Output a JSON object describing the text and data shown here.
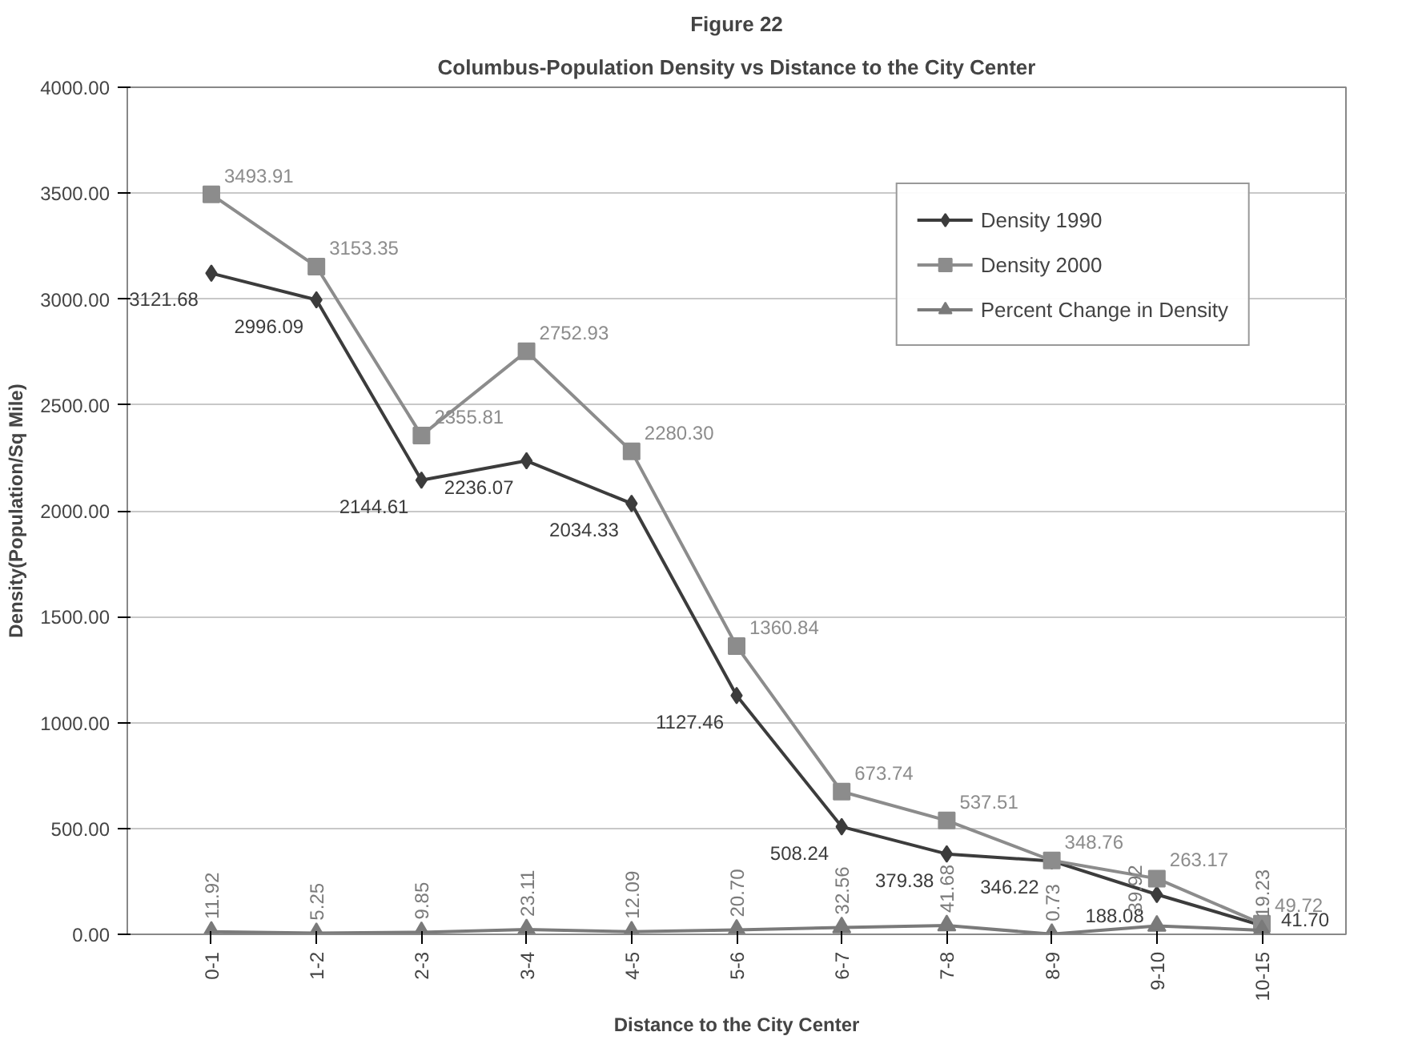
{
  "chart_data": {
    "type": "line",
    "title": "Figure 22",
    "subtitle": "Columbus-Population Density vs Distance to the City Center",
    "xlabel": "Distance to the City Center",
    "ylabel": "Density(Population/Sq Mile)",
    "categories": [
      "0-1",
      "1-2",
      "2-3",
      "3-4",
      "4-5",
      "5-6",
      "6-7",
      "7-8",
      "8-9",
      "9-10",
      "10-15"
    ],
    "series": [
      {
        "name": "Density 1990",
        "color": "#3c3c3c",
        "marker": "diamond",
        "values": [
          3121.68,
          2996.09,
          2144.61,
          2236.07,
          2034.33,
          1127.46,
          508.24,
          379.38,
          346.22,
          188.08,
          41.7
        ],
        "value_labels": [
          "3121.68",
          "2996.09",
          "2144.61",
          "2236.07",
          "2034.33",
          "1127.46",
          "508.24",
          "379.38",
          "346.22",
          "188.08",
          "41.70"
        ]
      },
      {
        "name": "Density 2000",
        "color": "#8c8c8c",
        "marker": "square",
        "values": [
          3493.91,
          3153.35,
          2355.81,
          2752.93,
          2280.3,
          1360.84,
          673.74,
          537.51,
          348.76,
          263.17,
          49.72
        ],
        "value_labels": [
          "3493.91",
          "3153.35",
          "2355.81",
          "2752.93",
          "2280.30",
          "1360.84",
          "673.74",
          "537.51",
          "348.76",
          "263.17",
          "49.72"
        ]
      },
      {
        "name": "Percent Change in Density",
        "color": "#7a7a7a",
        "marker": "triangle",
        "values": [
          11.92,
          5.25,
          9.85,
          23.11,
          12.09,
          20.7,
          32.56,
          41.68,
          0.73,
          39.92,
          19.23
        ],
        "value_labels": [
          "11.92",
          "5.25",
          "9.85",
          "23.11",
          "12.09",
          "20.70",
          "32.56",
          "41.68",
          "0.73",
          "39.92",
          "19.23"
        ]
      }
    ],
    "ylim": [
      0,
      4000
    ],
    "yticks": [
      {
        "value": 0,
        "label": "0.00"
      },
      {
        "value": 500,
        "label": "500.00"
      },
      {
        "value": 1000,
        "label": "1000.00"
      },
      {
        "value": 1500,
        "label": "1500.00"
      },
      {
        "value": 2000,
        "label": "2000.00"
      },
      {
        "value": 2500,
        "label": "2500.00"
      },
      {
        "value": 3000,
        "label": "3000.00"
      },
      {
        "value": 3500,
        "label": "3500.00"
      },
      {
        "value": 4000,
        "label": "4000.00"
      }
    ],
    "grid": "y",
    "legend": "top right",
    "line_style": "solid"
  }
}
